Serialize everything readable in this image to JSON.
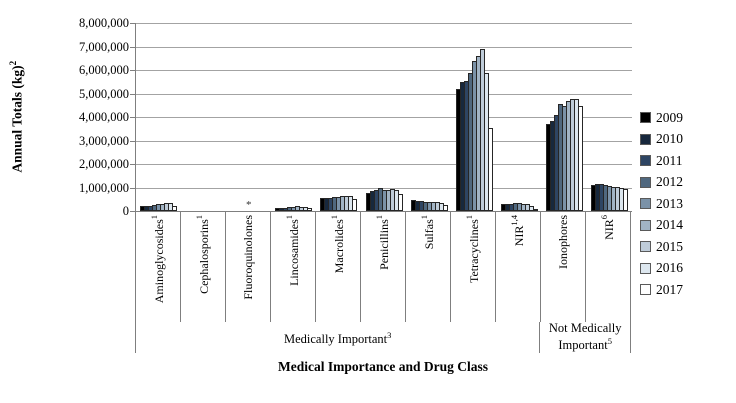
{
  "chart_data": {
    "type": "bar",
    "title": "",
    "xlabel": "Medical Importance and Drug Class",
    "ylabel": "Annual Totals (kg)",
    "ylabel_sup": "2",
    "ylim": [
      0,
      8000000
    ],
    "ytick_interval": 1000000,
    "ytick_labels": [
      "8,000,000",
      "7,000,000",
      "6,000,000",
      "5,000,000",
      "4,000,000",
      "3,000,000",
      "2,000,000",
      "1,000,000",
      "0"
    ],
    "grid": "horizontal",
    "legend_position": "right",
    "categories": [
      {
        "label": "Aminoglycosides",
        "sup": "1"
      },
      {
        "label": "Cephalosporins",
        "sup": "1"
      },
      {
        "label": "Fluoroquinolones",
        "sup": ""
      },
      {
        "label": "Lincosamides",
        "sup": "1"
      },
      {
        "label": "Macrolides",
        "sup": "1"
      },
      {
        "label": "Penicillins",
        "sup": "1"
      },
      {
        "label": "Sulfas",
        "sup": "1"
      },
      {
        "label": "Tetracyclines",
        "sup": "1"
      },
      {
        "label": "NIR",
        "sup": "1,4"
      },
      {
        "label": "Ionophores",
        "sup": ""
      },
      {
        "label": "NIR",
        "sup": "6"
      }
    ],
    "category_groups": [
      {
        "label": "Not Medically",
        "label_line2": "",
        "text": "Medically Important",
        "sup": "3",
        "span": 9
      },
      {
        "label": "Not Medically Important",
        "label_line2": "",
        "text": "Not Medically Important",
        "sup": "5",
        "span": 2
      }
    ],
    "series": [
      {
        "name": "2009",
        "color": "#000000",
        "values": [
          210000,
          20000,
          null,
          110000,
          550000,
          780000,
          450000,
          5200000,
          300000,
          3720000,
          1100000
        ]
      },
      {
        "name": "2010",
        "color": "#17283d",
        "values": [
          215000,
          20000,
          null,
          120000,
          560000,
          870000,
          430000,
          5480000,
          280000,
          3850000,
          1160000
        ]
      },
      {
        "name": "2011",
        "color": "#2e4563",
        "values": [
          225000,
          20000,
          null,
          140000,
          575000,
          900000,
          410000,
          5550000,
          300000,
          4100000,
          1130000
        ]
      },
      {
        "name": "2012",
        "color": "#50687f",
        "values": [
          250000,
          25000,
          null,
          160000,
          590000,
          970000,
          390000,
          5880000,
          350000,
          4550000,
          1090000
        ]
      },
      {
        "name": "2013",
        "color": "#7b92a8",
        "values": [
          280000,
          25000,
          null,
          185000,
          610000,
          910000,
          400000,
          6380000,
          330000,
          4450000,
          1060000
        ]
      },
      {
        "name": "2014",
        "color": "#a2b4c5",
        "values": [
          305000,
          25000,
          null,
          205000,
          635000,
          900000,
          380000,
          6600000,
          310000,
          4700000,
          1040000
        ]
      },
      {
        "name": "2015",
        "color": "#bfccd9",
        "values": [
          330000,
          25000,
          null,
          190000,
          650000,
          950000,
          370000,
          6880000,
          290000,
          4750000,
          1010000
        ]
      },
      {
        "name": "2016",
        "color": "#dde7ef",
        "values": [
          350000,
          25000,
          null,
          160000,
          620000,
          900000,
          330000,
          5870000,
          220000,
          4750000,
          990000
        ]
      },
      {
        "name": "2017",
        "color": "#ffffff",
        "values": [
          235000,
          20000,
          null,
          120000,
          500000,
          730000,
          260000,
          3550000,
          80000,
          4450000,
          930000
        ]
      }
    ],
    "annotations": [
      {
        "text": "*",
        "category_index": 2
      }
    ]
  }
}
